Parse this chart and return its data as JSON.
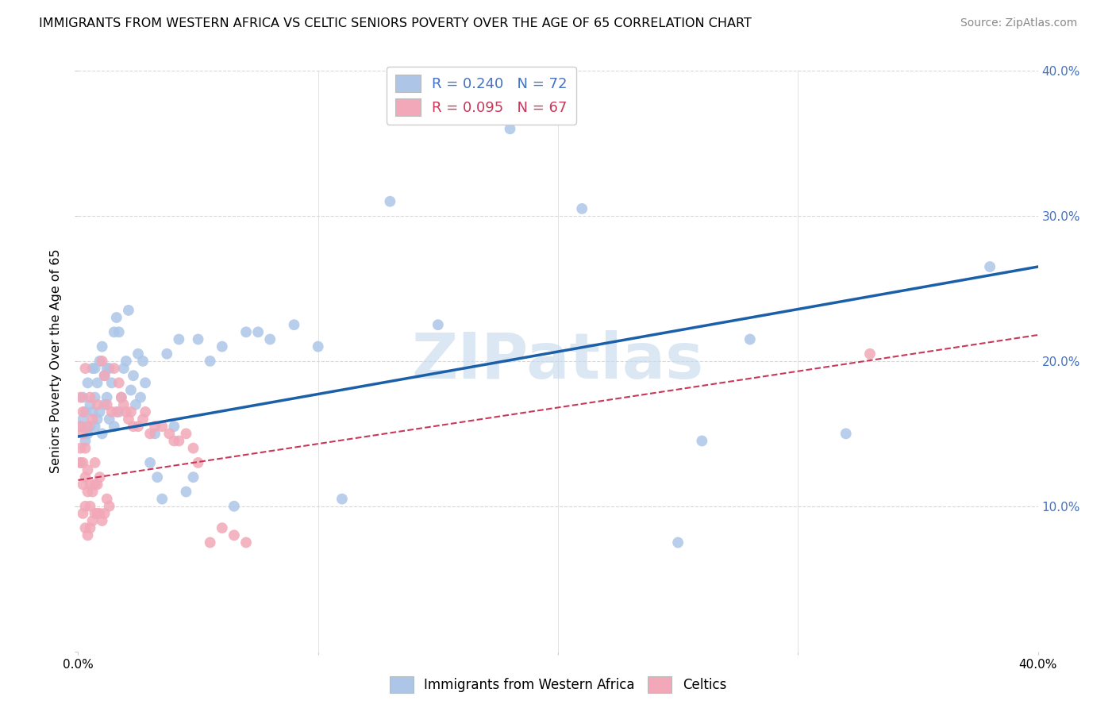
{
  "title": "IMMIGRANTS FROM WESTERN AFRICA VS CELTIC SENIORS POVERTY OVER THE AGE OF 65 CORRELATION CHART",
  "source": "Source: ZipAtlas.com",
  "ylabel": "Seniors Poverty Over the Age of 65",
  "xlim": [
    0,
    0.4
  ],
  "ylim": [
    0,
    0.4
  ],
  "legend_labels": [
    "Immigrants from Western Africa",
    "Celtics"
  ],
  "series1": {
    "label": "Immigrants from Western Africa",
    "R": 0.24,
    "N": 72,
    "color": "#adc6e8",
    "line_color": "#1a5fa8",
    "line_style": "solid",
    "x": [
      0.001,
      0.001,
      0.002,
      0.002,
      0.003,
      0.003,
      0.004,
      0.004,
      0.005,
      0.005,
      0.006,
      0.006,
      0.007,
      0.007,
      0.007,
      0.008,
      0.008,
      0.009,
      0.009,
      0.01,
      0.01,
      0.011,
      0.011,
      0.012,
      0.012,
      0.013,
      0.013,
      0.014,
      0.015,
      0.015,
      0.016,
      0.017,
      0.017,
      0.018,
      0.019,
      0.02,
      0.021,
      0.022,
      0.023,
      0.024,
      0.025,
      0.026,
      0.027,
      0.028,
      0.03,
      0.032,
      0.033,
      0.035,
      0.037,
      0.04,
      0.042,
      0.045,
      0.048,
      0.05,
      0.055,
      0.06,
      0.065,
      0.07,
      0.075,
      0.08,
      0.09,
      0.1,
      0.11,
      0.13,
      0.15,
      0.18,
      0.21,
      0.25,
      0.26,
      0.28,
      0.32,
      0.38
    ],
    "y": [
      0.13,
      0.155,
      0.16,
      0.175,
      0.145,
      0.165,
      0.15,
      0.185,
      0.155,
      0.17,
      0.165,
      0.195,
      0.155,
      0.175,
      0.195,
      0.16,
      0.185,
      0.165,
      0.2,
      0.15,
      0.21,
      0.17,
      0.19,
      0.175,
      0.195,
      0.16,
      0.195,
      0.185,
      0.155,
      0.22,
      0.23,
      0.165,
      0.22,
      0.175,
      0.195,
      0.2,
      0.235,
      0.18,
      0.19,
      0.17,
      0.205,
      0.175,
      0.2,
      0.185,
      0.13,
      0.15,
      0.12,
      0.105,
      0.205,
      0.155,
      0.215,
      0.11,
      0.12,
      0.215,
      0.2,
      0.21,
      0.1,
      0.22,
      0.22,
      0.215,
      0.225,
      0.21,
      0.105,
      0.31,
      0.225,
      0.36,
      0.305,
      0.075,
      0.145,
      0.215,
      0.15,
      0.265
    ]
  },
  "series2": {
    "label": "Celtics",
    "R": 0.095,
    "N": 67,
    "color": "#f2a8b8",
    "line_color": "#c8385a",
    "line_style": "dashed",
    "x": [
      0.001,
      0.001,
      0.001,
      0.001,
      0.002,
      0.002,
      0.002,
      0.002,
      0.002,
      0.003,
      0.003,
      0.003,
      0.003,
      0.003,
      0.004,
      0.004,
      0.004,
      0.004,
      0.005,
      0.005,
      0.005,
      0.005,
      0.006,
      0.006,
      0.006,
      0.007,
      0.007,
      0.007,
      0.008,
      0.008,
      0.008,
      0.009,
      0.009,
      0.01,
      0.01,
      0.011,
      0.011,
      0.012,
      0.012,
      0.013,
      0.014,
      0.015,
      0.016,
      0.017,
      0.018,
      0.019,
      0.02,
      0.021,
      0.022,
      0.023,
      0.025,
      0.027,
      0.028,
      0.03,
      0.032,
      0.035,
      0.038,
      0.04,
      0.042,
      0.045,
      0.048,
      0.05,
      0.055,
      0.06,
      0.065,
      0.07,
      0.33
    ],
    "y": [
      0.13,
      0.14,
      0.155,
      0.175,
      0.095,
      0.115,
      0.13,
      0.15,
      0.165,
      0.085,
      0.1,
      0.12,
      0.14,
      0.195,
      0.08,
      0.11,
      0.125,
      0.155,
      0.085,
      0.1,
      0.115,
      0.175,
      0.09,
      0.11,
      0.16,
      0.095,
      0.115,
      0.13,
      0.095,
      0.115,
      0.17,
      0.095,
      0.12,
      0.09,
      0.2,
      0.095,
      0.19,
      0.105,
      0.17,
      0.1,
      0.165,
      0.195,
      0.165,
      0.185,
      0.175,
      0.17,
      0.165,
      0.16,
      0.165,
      0.155,
      0.155,
      0.16,
      0.165,
      0.15,
      0.155,
      0.155,
      0.15,
      0.145,
      0.145,
      0.15,
      0.14,
      0.13,
      0.075,
      0.085,
      0.08,
      0.075,
      0.205
    ]
  },
  "watermark": "ZIPatlas",
  "background_color": "#ffffff",
  "grid_color": "#d8d8d8"
}
